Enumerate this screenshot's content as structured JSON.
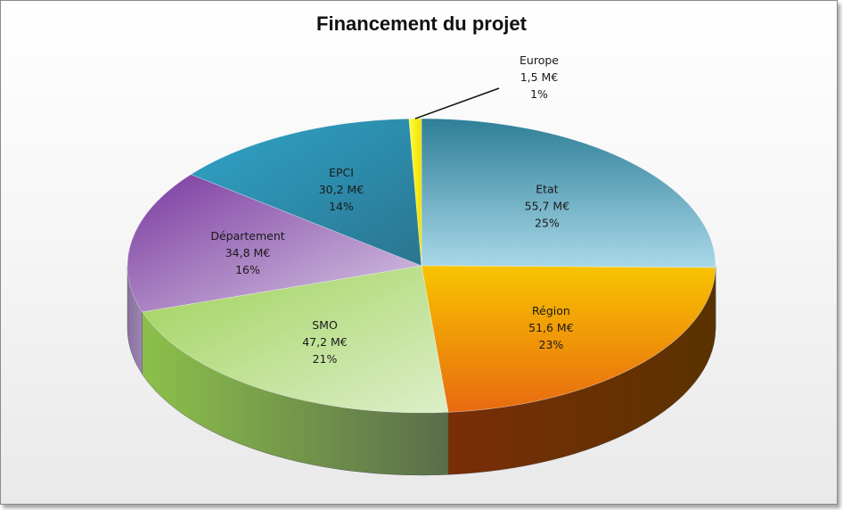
{
  "chart_data": {
    "type": "pie",
    "title": "Financement du projet",
    "unit": "M€",
    "categories": [
      "Etat",
      "Région",
      "SMO",
      "Département",
      "EPCI",
      "Europe"
    ],
    "values": [
      55.7,
      51.6,
      47.2,
      34.8,
      30.2,
      1.5
    ],
    "value_labels": [
      "55,7 M€",
      "51,6 M€",
      "47,2 M€",
      "34,8 M€",
      "30,2 M€",
      "1,5 M€"
    ],
    "percent_labels": [
      "25%",
      "23%",
      "21%",
      "16%",
      "14%",
      "1%"
    ],
    "colors": [
      "#3f9cb8",
      "#f5a300",
      "#8cc63f",
      "#8e4fa8",
      "#2e8fb0",
      "#f2ea1a"
    ],
    "legend": "none",
    "style": "3d-exploded"
  }
}
